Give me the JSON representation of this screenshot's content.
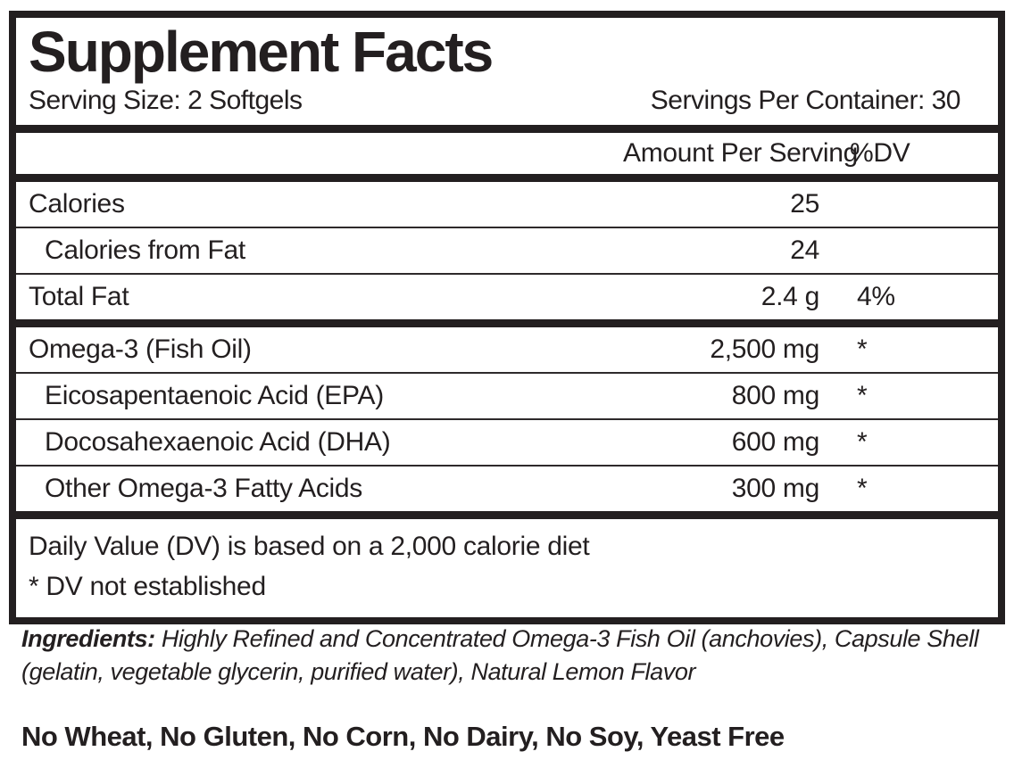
{
  "label": {
    "title": "Supplement Facts",
    "serving_size": "Serving Size: 2 Softgels",
    "servings_per_container": "Servings Per Container: 30",
    "columns": {
      "amount": "Amount Per Serving",
      "dv": "%DV"
    },
    "rows": [
      {
        "name": "Calories",
        "amount": "25",
        "dv": "",
        "indent": false,
        "new_section": false
      },
      {
        "name": "Calories from Fat",
        "amount": "24",
        "dv": "",
        "indent": true,
        "new_section": false
      },
      {
        "name": "Total Fat",
        "amount": "2.4 g",
        "dv": "4%",
        "indent": false,
        "new_section": false
      },
      {
        "name": "Omega-3 (Fish Oil)",
        "amount": "2,500 mg",
        "dv": "*",
        "indent": false,
        "new_section": true
      },
      {
        "name": "Eicosapentaenoic Acid (EPA)",
        "amount": "800 mg",
        "dv": "*",
        "indent": true,
        "new_section": false
      },
      {
        "name": "Docosahexaenoic Acid (DHA)",
        "amount": "600 mg",
        "dv": "*",
        "indent": true,
        "new_section": false
      },
      {
        "name": "Other Omega-3 Fatty Acids",
        "amount": "300 mg",
        "dv": "*",
        "indent": true,
        "new_section": false
      }
    ],
    "footnotes": [
      "Daily Value (DV) is based on a 2,000 calorie diet",
      "* DV not established"
    ]
  },
  "ingredients": {
    "label": "Ingredients:",
    "text": "Highly Refined and Concentrated Omega-3 Fish Oil (anchovies), Capsule Shell (gelatin, vegetable glycerin, purified water), Natural Lemon Flavor"
  },
  "allergen_statement": "No Wheat, No Gluten, No Corn, No Dairy, No Soy, Yeast Free",
  "colors": {
    "text": "#231f20",
    "border": "#231f20",
    "background": "#ffffff"
  }
}
